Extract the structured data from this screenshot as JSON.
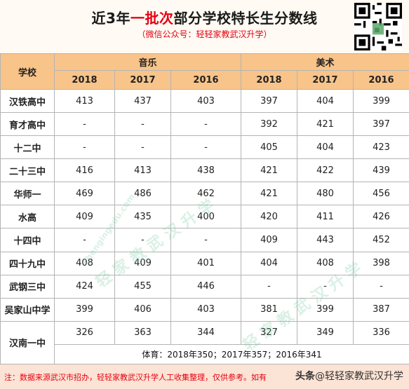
{
  "title": {
    "prefix": "近3年",
    "highlight": "一批次",
    "suffix": "部分学校特长生分数线"
  },
  "subtitle": "（微信公众号：轻轻家教武汉升学）",
  "table": {
    "school_header": "学校",
    "group_music": "音乐",
    "group_art": "美术",
    "years": [
      "2018",
      "2017",
      "2016",
      "2018",
      "2017",
      "2016"
    ],
    "rows": [
      {
        "school": "汉铁高中",
        "scores": [
          "413",
          "437",
          "403",
          "397",
          "404",
          "399"
        ]
      },
      {
        "school": "育才高中",
        "scores": [
          "-",
          "-",
          "-",
          "392",
          "421",
          "397"
        ]
      },
      {
        "school": "十二中",
        "scores": [
          "-",
          "-",
          "-",
          "405",
          "404",
          "423"
        ]
      },
      {
        "school": "二十三中",
        "scores": [
          "416",
          "413",
          "438",
          "421",
          "422",
          "439"
        ]
      },
      {
        "school": "华师一",
        "scores": [
          "469",
          "486",
          "462",
          "421",
          "480",
          "456"
        ]
      },
      {
        "school": "水高",
        "scores": [
          "409",
          "435",
          "400",
          "420",
          "411",
          "426"
        ]
      },
      {
        "school": "十四中",
        "scores": [
          "-",
          "-",
          "-",
          "409",
          "443",
          "452"
        ]
      },
      {
        "school": "四十九中",
        "scores": [
          "408",
          "409",
          "401",
          "404",
          "408",
          "398"
        ]
      },
      {
        "school": "武钢三中",
        "scores": [
          "424",
          "455",
          "446",
          "-",
          "-",
          "-"
        ]
      },
      {
        "school": "吴家山中学",
        "scores": [
          "399",
          "406",
          "403",
          "381",
          "399",
          "387"
        ]
      },
      {
        "school": "汉南一中",
        "scores": [
          "326",
          "363",
          "344",
          "327",
          "349",
          "336"
        ]
      }
    ],
    "sports_note": "体育：2018年350；2017年357；2016年341"
  },
  "footer": {
    "note": "注：数据来源武汉市招办，轻轻家教武汉升学人工收集整理，仅供参考。如有",
    "brand_head": "头条",
    "brand_name": "@轻轻家教武汉升学"
  },
  "watermark": {
    "text": "轻 家 教 武 汉 升 学",
    "url": "chengingedu.com"
  },
  "colors": {
    "header_bg": "#f9c48a",
    "title_highlight": "#e60012",
    "footer_bg": "#fbe3d5"
  }
}
